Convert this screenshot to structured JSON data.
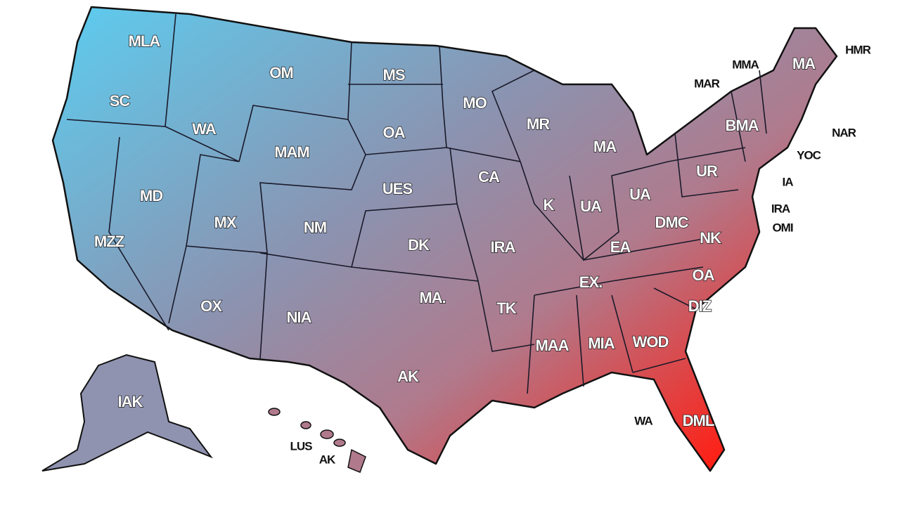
{
  "map": {
    "labels": [
      "MLA",
      "OM",
      "MS",
      "MO",
      "MR",
      "SC",
      "WA",
      "OA",
      "MAM",
      "MA",
      "CA",
      "UES",
      "MD",
      "MX",
      "NM",
      "K",
      "UA",
      "UA",
      "UR",
      "DK",
      "IRA",
      "DMC",
      "NK",
      "MZZ",
      "EA",
      "OX",
      "NIA",
      "MA.",
      "EX.",
      "OA",
      "TK",
      "DIZ",
      "MAA",
      "MIA",
      "WOD",
      "AK",
      "IAK",
      "WA",
      "DML",
      "LUS",
      "AK",
      "HMR",
      "MMA",
      "MA",
      "MAR",
      "BMA",
      "NAR",
      "YOC",
      "IA",
      "IRA",
      "OMI"
    ]
  }
}
